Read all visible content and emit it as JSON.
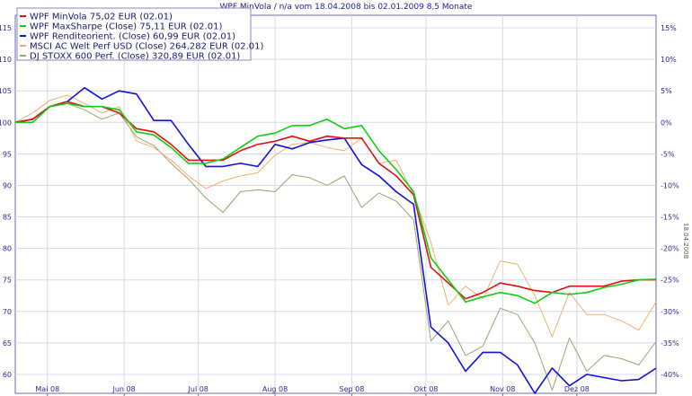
{
  "chart_data": {
    "type": "line",
    "title": "WPF MinVola / n/a vom 18.04.2008 bis 02.01.2009 8,5 Monate",
    "side_label": "18.04.2008",
    "x_range": [
      "2008-04-18",
      "2009-01-02"
    ],
    "x_ticks": [
      {
        "label": "Mai 08",
        "date": "2008-05-01"
      },
      {
        "label": "Jun 08",
        "date": "2008-06-01"
      },
      {
        "label": "Jul 08",
        "date": "2008-07-01"
      },
      {
        "label": "Aug 08",
        "date": "2008-08-01"
      },
      {
        "label": "Sep 08",
        "date": "2008-09-01"
      },
      {
        "label": "Okt 08",
        "date": "2008-10-01"
      },
      {
        "label": "Nov 08",
        "date": "2008-11-01"
      },
      {
        "label": "Dez 08",
        "date": "2008-12-01"
      }
    ],
    "y_left": {
      "min": 57,
      "max": 117,
      "ticks": [
        60,
        65,
        70,
        75,
        80,
        85,
        90,
        95,
        100,
        105,
        110,
        115
      ]
    },
    "y_right_ticks": [
      "-40%",
      "-35%",
      "-30%",
      "-25%",
      "-20%",
      "-15%",
      "-10%",
      "-5%",
      "0%",
      "5%",
      "10%",
      "15%"
    ],
    "grid": true,
    "legend_position": "top-left",
    "x": [
      "2008-04-18",
      "2008-04-25",
      "2008-05-02",
      "2008-05-09",
      "2008-05-16",
      "2008-05-23",
      "2008-05-30",
      "2008-06-06",
      "2008-06-13",
      "2008-06-20",
      "2008-06-27",
      "2008-07-04",
      "2008-07-11",
      "2008-07-18",
      "2008-07-25",
      "2008-08-01",
      "2008-08-08",
      "2008-08-15",
      "2008-08-22",
      "2008-08-29",
      "2008-09-05",
      "2008-09-12",
      "2008-09-19",
      "2008-09-26",
      "2008-10-03",
      "2008-10-10",
      "2008-10-17",
      "2008-10-24",
      "2008-10-31",
      "2008-11-07",
      "2008-11-14",
      "2008-11-21",
      "2008-11-28",
      "2008-12-05",
      "2008-12-12",
      "2008-12-19",
      "2008-12-26",
      "2009-01-02"
    ],
    "series": [
      {
        "name": "WPF MinVola 75,02 EUR (02.01)",
        "color": "#e01010",
        "values": [
          100,
          100.5,
          102.5,
          103.3,
          102.5,
          102.5,
          101.5,
          99,
          98.5,
          96.5,
          94,
          94,
          94,
          95.5,
          96.5,
          97,
          97.8,
          97,
          97.8,
          97.5,
          97.5,
          93.5,
          91.5,
          88.5,
          77,
          74.5,
          72,
          73,
          74.5,
          74,
          73.3,
          73,
          74,
          74,
          74,
          74.8,
          75,
          75.02
        ]
      },
      {
        "name": "WPF MaxSharpe (Close) 75,11 EUR (02.01)",
        "color": "#10d010",
        "values": [
          100,
          100,
          102.5,
          103,
          102.5,
          102.5,
          102,
          98.5,
          98,
          96,
          93.5,
          93.5,
          94.2,
          96,
          97.8,
          98.3,
          99.5,
          99.5,
          100.5,
          99,
          99.5,
          95.5,
          92.5,
          89,
          78.5,
          75,
          71.5,
          72.3,
          73,
          72.5,
          71.3,
          73,
          72.7,
          73,
          73.8,
          74.3,
          75,
          75.11
        ]
      },
      {
        "name": "WPF Renditeorient. (Close) 60,99 EUR (02.01)",
        "color": "#1010e0",
        "values": [
          100,
          100.5,
          102.5,
          103.3,
          105.5,
          103.7,
          105,
          104.5,
          100.3,
          100.3,
          96.5,
          93,
          93,
          93.5,
          93,
          96.5,
          95.8,
          96.8,
          97.2,
          97.5,
          93.3,
          91.5,
          89,
          87,
          67.5,
          65,
          60.5,
          63.5,
          63.5,
          61.5,
          57,
          61,
          58.2,
          60,
          59.5,
          59,
          59.2,
          60.99
        ]
      },
      {
        "name": "MSCI AC Welt Perf USD (Close) 264,282 EUR (02.01)",
        "color": "#f0b070",
        "values": [
          100,
          101.5,
          103.5,
          104.3,
          103,
          101.5,
          102.5,
          97,
          96,
          94,
          91.5,
          89.5,
          90.7,
          91.5,
          92,
          94.8,
          96.5,
          96.8,
          96,
          95.5,
          97.5,
          93.5,
          94,
          88.5,
          81,
          71,
          74,
          72,
          78,
          77.5,
          72.5,
          66,
          73,
          69.5,
          69.5,
          68.5,
          67,
          71.5
        ]
      },
      {
        "name": "DJ STOXX 600 Perf. (Close) 320,89 EUR (02.01)",
        "color": "#a0a070",
        "values": [
          100,
          100.5,
          102.5,
          103,
          102,
          100.5,
          101.5,
          97.7,
          96.3,
          93.5,
          91,
          88,
          85.7,
          89,
          89.3,
          89,
          91.7,
          91.2,
          90,
          91.5,
          86.5,
          88.8,
          87.5,
          84.5,
          65.3,
          68.5,
          63,
          64.5,
          70.5,
          69.5,
          65,
          57.5,
          65.8,
          60.5,
          63,
          62.5,
          61.5,
          65.2
        ]
      }
    ]
  }
}
